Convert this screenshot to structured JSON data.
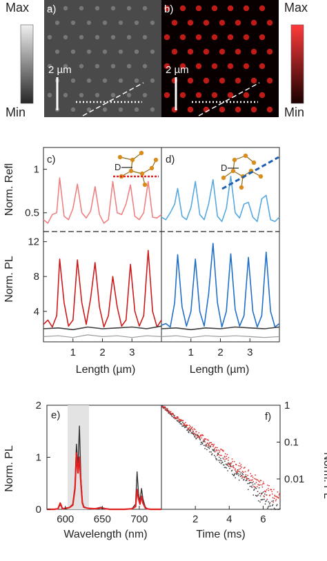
{
  "top_row": {
    "scale_left": {
      "max": "Max",
      "min": "Min"
    },
    "scale_right": {
      "max": "Max",
      "min": "Min"
    },
    "panel_a": {
      "label": "a)",
      "scalebar": "2 µm"
    },
    "panel_b": {
      "label": "b)",
      "scalebar": "2 µm"
    },
    "colors": {
      "refl_map": "#6e6e6e",
      "pl_map": "#e0201b"
    }
  },
  "chart_data": [
    {
      "panel": "c)",
      "type": "line",
      "x_label": "Length (µm)",
      "x_ticks": [
        "1",
        "2",
        "3"
      ],
      "x_range": [
        0,
        4
      ],
      "upper": {
        "y_label": "Norm. Refl",
        "y_ticks": [
          "1",
          "0.5"
        ],
        "y_range": [
          0.3,
          1.25
        ],
        "series": [
          {
            "color": "#f08080",
            "x": [
              0.0,
              0.15,
              0.3,
              0.45,
              0.55,
              0.7,
              0.85,
              1.0,
              1.15,
              1.3,
              1.45,
              1.6,
              1.75,
              1.9,
              2.05,
              2.2,
              2.35,
              2.5,
              2.65,
              2.8,
              2.95,
              3.1,
              3.25,
              3.4,
              3.55,
              3.7,
              3.85,
              4.0
            ],
            "y": [
              0.42,
              0.38,
              0.48,
              0.5,
              0.9,
              0.46,
              0.42,
              0.55,
              0.83,
              0.5,
              0.44,
              0.52,
              0.8,
              0.48,
              0.38,
              0.42,
              0.86,
              0.5,
              0.48,
              0.6,
              0.82,
              0.46,
              0.42,
              0.5,
              0.86,
              0.45,
              0.44,
              0.48
            ]
          }
        ]
      },
      "lower": {
        "y_label": "Norm. PL",
        "y_ticks": [
          "12",
          "8",
          "4"
        ],
        "y_range": [
          0.5,
          13
        ],
        "series": [
          {
            "color": "#cc1a1a",
            "x": [
              0.0,
              0.15,
              0.3,
              0.45,
              0.55,
              0.7,
              0.85,
              1.0,
              1.15,
              1.3,
              1.45,
              1.6,
              1.75,
              1.9,
              2.05,
              2.2,
              2.35,
              2.5,
              2.65,
              2.8,
              2.95,
              3.1,
              3.25,
              3.4,
              3.55,
              3.7,
              3.85,
              4.0
            ],
            "y": [
              2.5,
              3.0,
              2.2,
              3.5,
              10.0,
              5.0,
              2.3,
              3.0,
              9.9,
              5.0,
              2.5,
              5.5,
              9.6,
              4.5,
              2.2,
              3.5,
              8.0,
              4.5,
              2.3,
              3.0,
              9.4,
              4.0,
              2.3,
              3.5,
              11.0,
              4.0,
              2.2,
              3.0
            ]
          },
          {
            "color": "#3a3a3a",
            "x": [
              0.0,
              0.5,
              1.0,
              1.5,
              2.0,
              2.5,
              3.0,
              3.5,
              4.0
            ],
            "y": [
              2.0,
              2.1,
              1.9,
              2.2,
              2.0,
              2.1,
              2.2,
              2.0,
              2.3
            ]
          },
          {
            "color": "#999999",
            "x": [
              0.0,
              0.5,
              1.0,
              1.5,
              2.0,
              2.5,
              3.0,
              3.5,
              4.0
            ],
            "y": [
              1.1,
              1.2,
              1.0,
              1.3,
              1.1,
              1.2,
              1.0,
              1.2,
              1.1
            ]
          }
        ]
      },
      "inset_label": "D"
    },
    {
      "panel": "d)",
      "type": "line",
      "x_label": "Length (µm)",
      "x_ticks": [
        "1",
        "2",
        "3"
      ],
      "x_range": [
        0,
        4
      ],
      "upper": {
        "y_range": [
          0.3,
          1.25
        ],
        "series": [
          {
            "color": "#55a8e0",
            "x": [
              0.0,
              0.15,
              0.3,
              0.45,
              0.55,
              0.7,
              0.85,
              1.0,
              1.15,
              1.3,
              1.45,
              1.6,
              1.75,
              1.9,
              2.05,
              2.2,
              2.35,
              2.5,
              2.65,
              2.8,
              2.95,
              3.1,
              3.25,
              3.4,
              3.55,
              3.7,
              3.85,
              4.0
            ],
            "y": [
              0.45,
              0.42,
              0.5,
              0.6,
              0.78,
              0.46,
              0.42,
              0.56,
              0.86,
              0.48,
              0.42,
              0.6,
              0.88,
              0.46,
              0.4,
              0.55,
              0.92,
              0.5,
              0.44,
              0.6,
              0.62,
              0.45,
              0.4,
              0.66,
              0.7,
              0.42,
              0.4,
              0.45
            ]
          }
        ]
      },
      "lower": {
        "y_range": [
          0.5,
          13
        ],
        "series": [
          {
            "color": "#1f6fc9",
            "x": [
              0.0,
              0.15,
              0.3,
              0.45,
              0.55,
              0.7,
              0.85,
              1.0,
              1.15,
              1.3,
              1.45,
              1.6,
              1.75,
              1.9,
              2.05,
              2.2,
              2.35,
              2.5,
              2.65,
              2.8,
              2.95,
              3.1,
              3.25,
              3.4,
              3.55,
              3.7,
              3.85,
              4.0
            ],
            "y": [
              2.4,
              2.6,
              2.2,
              5.0,
              10.5,
              4.5,
              2.3,
              4.0,
              10.0,
              4.0,
              2.3,
              6.0,
              11.8,
              5.0,
              2.2,
              4.0,
              10.6,
              4.2,
              2.3,
              3.5,
              10.2,
              4.0,
              2.2,
              3.5,
              10.8,
              4.0,
              2.2,
              2.6
            ]
          },
          {
            "color": "#3a3a3a",
            "x": [
              0.0,
              0.5,
              1.0,
              1.5,
              2.0,
              2.5,
              3.0,
              3.5,
              4.0
            ],
            "y": [
              2.0,
              2.1,
              1.9,
              2.1,
              2.0,
              2.2,
              2.1,
              2.0,
              2.2
            ]
          },
          {
            "color": "#999999",
            "x": [
              0.0,
              0.5,
              1.0,
              1.5,
              2.0,
              2.5,
              3.0,
              3.5,
              4.0
            ],
            "y": [
              1.1,
              1.2,
              1.0,
              1.2,
              1.1,
              1.2,
              1.1,
              1.0,
              1.1
            ]
          }
        ]
      },
      "inset_label": "D"
    },
    {
      "panel": "e)",
      "type": "line",
      "x_label": "Wavelength (nm)",
      "y_label": "Norm. PL",
      "x_ticks": [
        "600",
        "650",
        "700"
      ],
      "y_ticks": [
        "2",
        "1",
        "0"
      ],
      "x_range": [
        575,
        730
      ],
      "y_range": [
        0,
        2
      ],
      "shaded_band": [
        603,
        632
      ],
      "series": [
        {
          "color": "#333333",
          "x": [
            575,
            585,
            590,
            593,
            596,
            600,
            605,
            610,
            613,
            615,
            617,
            619,
            621,
            623,
            625,
            630,
            640,
            645,
            648,
            650,
            655,
            660,
            670,
            680,
            690,
            695,
            697,
            699,
            701,
            703,
            705,
            708,
            710,
            715,
            720,
            730
          ],
          "y": [
            0,
            0,
            0.01,
            0.09,
            0.01,
            0.02,
            0.03,
            0.1,
            0.45,
            1.25,
            0.8,
            1.6,
            0.6,
            0.15,
            0.05,
            0.02,
            0.01,
            0.03,
            0.04,
            0.03,
            0.01,
            0,
            0,
            0,
            0.01,
            0.1,
            0.72,
            0.3,
            0.15,
            0.4,
            0.2,
            0.05,
            0.02,
            0,
            0,
            0
          ]
        },
        {
          "color": "#e02020",
          "x": [
            575,
            585,
            590,
            593,
            596,
            600,
            605,
            610,
            613,
            615,
            617,
            619,
            621,
            623,
            625,
            630,
            640,
            645,
            648,
            650,
            655,
            660,
            670,
            680,
            690,
            695,
            697,
            699,
            701,
            703,
            705,
            708,
            710,
            715,
            720,
            730
          ],
          "y": [
            0,
            0,
            0.01,
            0.12,
            0.01,
            0.02,
            0.03,
            0.08,
            0.4,
            1.08,
            0.7,
            1.0,
            0.5,
            0.12,
            0.04,
            0.02,
            0.01,
            0.02,
            0.03,
            0.02,
            0.01,
            0,
            0,
            0,
            0.01,
            0.05,
            0.38,
            0.2,
            0.1,
            0.25,
            0.12,
            0.03,
            0.01,
            0,
            0,
            0
          ]
        }
      ]
    },
    {
      "panel": "f)",
      "type": "scatter",
      "x_label": "Time (ms)",
      "y_label": "Norm. PL",
      "x_ticks": [
        "2",
        "4",
        "6"
      ],
      "y_ticks": [
        "1",
        "0.1",
        "0.01"
      ],
      "x_range": [
        0,
        7
      ],
      "y_range": [
        0.0015,
        1
      ],
      "y_scale": "log",
      "series": [
        {
          "color": "#e03030",
          "decay_time_ms": 1.18
        },
        {
          "color": "#444444",
          "decay_time_ms": 1.05
        }
      ]
    }
  ]
}
